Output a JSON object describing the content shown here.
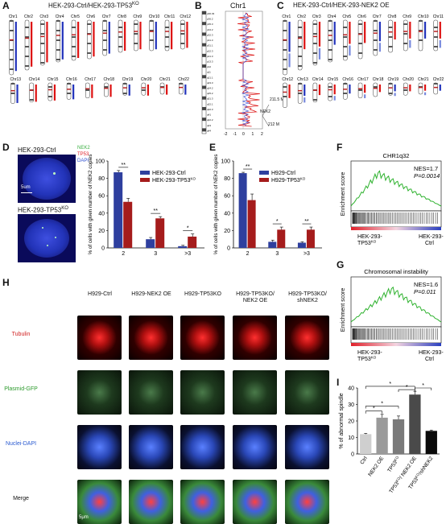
{
  "panels": {
    "A": {
      "label": "A",
      "title": "HEK-293-Ctrl/HEK-293-TP53KO",
      "title_prefix": "HEK-293-Ctrl/HEK-293-TP53",
      "title_sup": "KO",
      "row1": [
        "Chr1",
        "Chr2",
        "Chr3",
        "Chr4",
        "Chr5",
        "Chr6",
        "Chr7",
        "Chr8",
        "Chr9",
        "Chr10",
        "Chr11",
        "Chr12"
      ],
      "row2": [
        "Chr13",
        "Chr14",
        "Chr15",
        "Chr16",
        "Chr17",
        "Chr18",
        "Chr19",
        "Chr20",
        "Chr21",
        "Chr22"
      ]
    },
    "B": {
      "label": "B",
      "title": "Chr1",
      "axis_ticks": [
        "-2",
        "-1",
        "0",
        "1",
        "2"
      ],
      "annot": [
        "211.5 M",
        "NEK2",
        "212 M"
      ],
      "bands": [
        "p36.33",
        "p36.2",
        "p35.3",
        "p34.2",
        "p32.3",
        "p31.3",
        "p31.1",
        "p22.3",
        "p21.3",
        "p13.3",
        "p12",
        "q11",
        "q21.1",
        "q23.3",
        "q24.2",
        "q25.2",
        "q31.3",
        "q32.1",
        "q32.3",
        "q41",
        "q42.2",
        "q43",
        "q44"
      ]
    },
    "C": {
      "label": "C",
      "title": "HEK-293-Ctrl/HEK-293-NEK2 OE",
      "row1": [
        "Chr1",
        "Chr2",
        "Chr3",
        "Chr4",
        "Chr5",
        "Chr6",
        "Chr7",
        "Chr8",
        "Chr9",
        "Chr10",
        "Chr11"
      ],
      "row2": [
        "Chr12",
        "Chr13",
        "Chr14",
        "Chr15",
        "Chr16",
        "Chr17",
        "Chr18",
        "Chr19",
        "Chr20",
        "Chr21",
        "Chr22"
      ]
    },
    "D": {
      "label": "D",
      "img1_title": "HEK-293-Ctrl",
      "img2_title_prefix": "HEK-293-TP53",
      "img2_title_sup": "KO",
      "legend": [
        "NEK2",
        "TP53",
        "DAPI"
      ],
      "legend_colors": [
        "#3cb043",
        "#e0202a",
        "#3050d0"
      ],
      "scale": "5um",
      "sig": [
        "**",
        "**",
        "*"
      ]
    },
    "E": {
      "label": "E",
      "sig": [
        "**",
        "*",
        "**"
      ]
    },
    "F": {
      "label": "F",
      "title": "CHR1q32",
      "nes": "NES=1.7",
      "p": "P=0.0014",
      "ylabel": "Enrichment score",
      "left_prefix": "HEK-293-",
      "left_main": "TP53",
      "left_sup": "KO",
      "right": "HEK-293-",
      "right2": "Ctrl"
    },
    "G": {
      "label": "G",
      "title": "Chromosomal instability",
      "nes": "NES=1.6",
      "p": "P=0.011",
      "ylabel": "Enrichment score",
      "left_prefix": "HEK-293-",
      "left_main": "TP53",
      "left_sup": "KO",
      "right": "HEK-293-",
      "right2": "Ctrl"
    },
    "H": {
      "label": "H",
      "columns": [
        "H929-Ctrl",
        "H929-NEK2 OE",
        "H929-TP53KO",
        "H929-TP53KO/ NEK2 OE",
        "H929-TP53KO/ shNEK2"
      ],
      "rows": [
        "Tubulin",
        "Plasmid-GFP",
        "Nuclei-DAPI",
        "Merge"
      ],
      "row_colors": [
        "#d02020",
        "#2c9a2c",
        "#2a5ad0",
        "#111111"
      ],
      "scale": "5μm"
    },
    "I": {
      "label": "I",
      "sig": [
        "*",
        "*",
        "*",
        "*",
        "*"
      ]
    }
  },
  "chart_data": [
    {
      "type": "bar",
      "panel": "D",
      "categories": [
        "2",
        "3",
        ">3"
      ],
      "series": [
        {
          "name": "HEK-293-Ctrl",
          "values": [
            87,
            10,
            2
          ],
          "errors": [
            2,
            2,
            1
          ]
        },
        {
          "name": "HEK-293-TP53KO",
          "values": [
            53,
            34,
            13
          ],
          "errors": [
            4,
            2,
            3
          ]
        }
      ],
      "colors": [
        "#2e3f9e",
        "#a51c1c"
      ],
      "ylabel": "% of cells with given number of NEK2 copies",
      "ylim": [
        0,
        100
      ],
      "yticks": [
        "0",
        "20",
        "40",
        "60",
        "80",
        "100"
      ]
    },
    {
      "type": "bar",
      "panel": "E",
      "categories": [
        "2",
        "3",
        ">3"
      ],
      "series": [
        {
          "name": "H929-Ctrl",
          "values": [
            86,
            7,
            6
          ],
          "errors": [
            1,
            2,
            1
          ]
        },
        {
          "name": "H929-TP53KO",
          "values": [
            55,
            21,
            21
          ],
          "errors": [
            7,
            3,
            3
          ]
        }
      ],
      "colors": [
        "#2e3f9e",
        "#a51c1c"
      ],
      "ylabel": "% of cells with given number of NEK2 copies",
      "ylim": [
        0,
        100
      ],
      "yticks": [
        "0",
        "20",
        "40",
        "60",
        "80",
        "100"
      ]
    },
    {
      "type": "bar",
      "panel": "I",
      "categories": [
        "Ctrl",
        "NEK2 OE",
        "TP53KO",
        "TP53KO/ NEK2 OE",
        "TP53KO/shNEK2"
      ],
      "values": [
        12,
        22,
        21,
        36,
        14
      ],
      "errors": [
        0.5,
        2,
        2,
        2,
        0.5
      ],
      "colors": [
        "#cfcfcf",
        "#9a9a9a",
        "#7a7a7a",
        "#4a4a4a",
        "#0a0a0a"
      ],
      "ylabel": "% of abnormal spindle",
      "ylim": [
        0,
        40
      ],
      "yticks": [
        "0",
        "10",
        "20",
        "30",
        "40"
      ]
    }
  ]
}
